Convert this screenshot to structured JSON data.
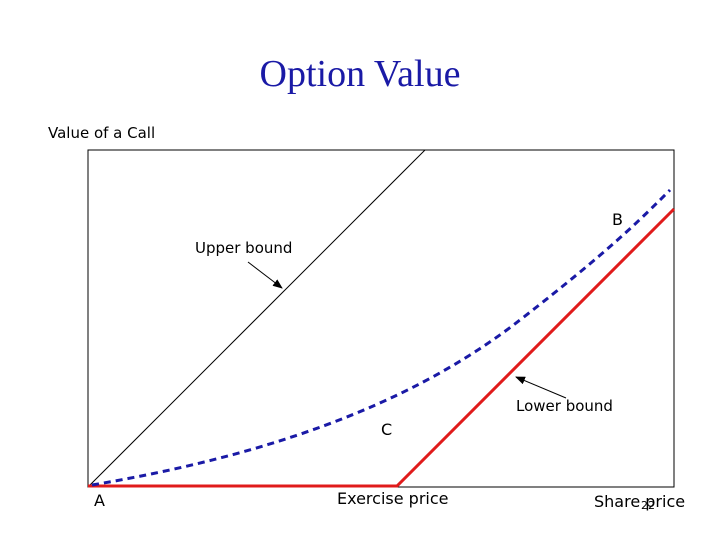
{
  "title": "Option Value",
  "y_axis_label": "Value of a Call",
  "labels": {
    "upper_bound": "Upper bound",
    "lower_bound": "Lower bound",
    "point_a": "A",
    "point_b": "B",
    "point_c": "C",
    "exercise_price": "Exercise price",
    "share_price": "Share price",
    "slide_number": "22"
  },
  "colors": {
    "title": "#1a1aa6",
    "lower_bound_line": "#e01b1b",
    "option_value_curve": "#1a1aa6",
    "upper_bound_line": "#000000",
    "frame": "#000000"
  }
}
